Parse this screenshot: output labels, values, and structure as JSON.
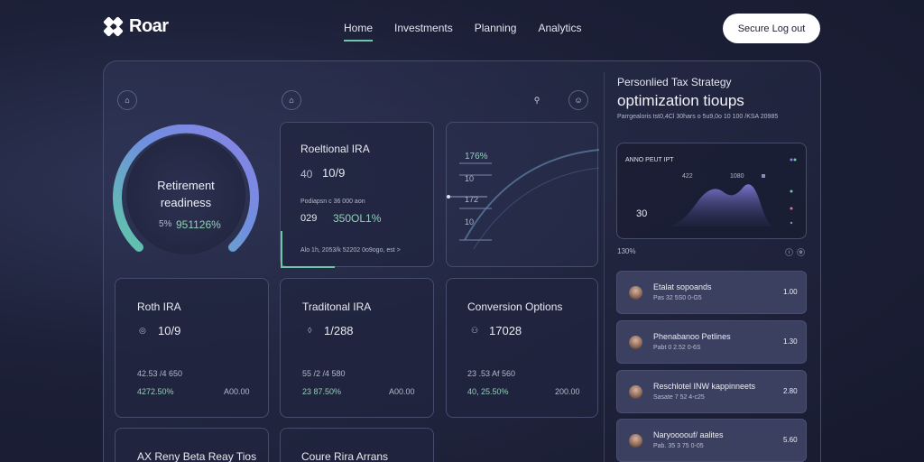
{
  "app": {
    "name": "Roar"
  },
  "nav": {
    "items": [
      "Home",
      "Investments",
      "Planning",
      "Analytics"
    ],
    "active": "Home"
  },
  "logout": {
    "label": "Secure Log out"
  },
  "retirement": {
    "title_line1": "Retirement",
    "title_line2": "readiness",
    "prefix": "5%",
    "value": "951126%"
  },
  "traditional_top": {
    "title": "Roeltional IRA",
    "prefix": "40",
    "value": "10/9",
    "small": "Podiapsn c 36 000 aon",
    "prefix2": "029",
    "value2": "350OL1%",
    "footer": "Alo 1h, 2053/k 52202 0o9ogo, est >"
  },
  "mini_chart": {
    "labels": [
      "176%",
      "10",
      "172",
      "10"
    ]
  },
  "cards": [
    {
      "title": "Roth IRA",
      "value": "10/9",
      "sub": "42.53 /4 650",
      "pct": "4272.50%",
      "right": "A00.00"
    },
    {
      "title": "Traditonal IRA",
      "value": "1/288",
      "sub": "55 /2 /4 580",
      "pct": "23 87.50%",
      "right": "A00.00"
    },
    {
      "title": "Conversion Options",
      "value": "17028",
      "sub": "23 .53 Af 560",
      "pct": "40, 25.50%",
      "right": "200.00"
    }
  ],
  "bottom_cards": [
    {
      "title": "AX Reny Beta Reay Tios"
    },
    {
      "title": "Coure Rira Arrans"
    }
  ],
  "strategy": {
    "heading_small": "Personlied Tax Strategy",
    "heading": "optimization tioups",
    "sub": "Parrgealoris tst0,4Cl 30hars o 5u9,0o 10 100 /KSA 20985",
    "chart_label": "ANNO PEUT IPT",
    "peak1": "422",
    "peak2": "1080",
    "y_value": "30",
    "pct": "130%"
  },
  "list": [
    {
      "title": "Etalat sopoands",
      "sub": "Pas 32 5S0 0-G5",
      "value": "1.00"
    },
    {
      "title": "Phenabanoo Petlines",
      "sub": "Pabt 0 2.52 0-6S",
      "value": "1.30"
    },
    {
      "title": "Reschlotel INW kappinneets",
      "sub": "Sasate 7 52 4-c25",
      "value": "2.80"
    },
    {
      "title": "Naryoooouf/ aalites",
      "sub": "Pab. 35 3 75 0-05",
      "value": "5.60"
    }
  ],
  "colors": {
    "accent": "#6ec7a8",
    "gauge_start": "#5fc7a8",
    "gauge_end": "#8b82e6"
  }
}
